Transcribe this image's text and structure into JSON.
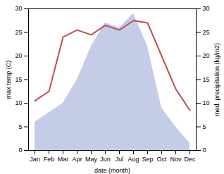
{
  "chart_data": {
    "type": "line",
    "categories": [
      "Jan",
      "Feb",
      "Mar",
      "Apr",
      "May",
      "Jun",
      "Jul",
      "Aug",
      "Sep",
      "Oct",
      "Nov",
      "Dec"
    ],
    "xlabel": "date (month)",
    "ylabel": "max temp (C)",
    "y2label": "med. precipitation (kg/m2)",
    "ylim": [
      0,
      30
    ],
    "yticks": [
      0,
      5,
      10,
      15,
      20,
      25,
      30
    ],
    "y2lim": [
      0,
      30
    ],
    "y2ticks": [
      0,
      5,
      10,
      15,
      20,
      25,
      30
    ],
    "series": [
      {
        "type": "area",
        "axis": "y2",
        "color": "#c5cce8",
        "values": [
          6,
          8,
          10,
          15,
          22,
          27,
          26,
          29,
          22,
          9,
          5,
          1.5
        ]
      },
      {
        "type": "line",
        "color": "#c0504d",
        "values": [
          10.5,
          12.5,
          24,
          25.5,
          24.5,
          26.5,
          25.5,
          27.5,
          27,
          20,
          13,
          8.5
        ]
      }
    ]
  }
}
